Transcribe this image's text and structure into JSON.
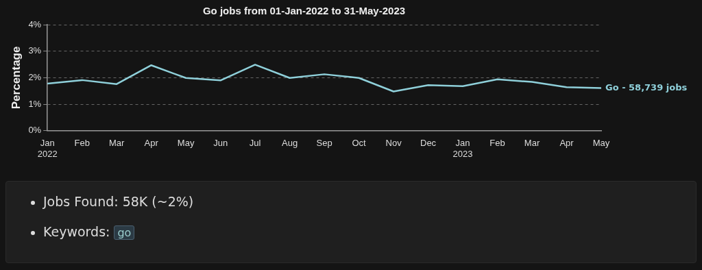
{
  "chart_data": {
    "type": "line",
    "title": "Go jobs from 01-Jan-2022 to 31-May-2023",
    "ylabel": "Percentage",
    "categories": [
      "Jan 2022",
      "Feb",
      "Mar",
      "Apr",
      "May",
      "Jun",
      "Jul",
      "Aug",
      "Sep",
      "Oct",
      "Nov",
      "Dec",
      "Jan 2023",
      "Feb",
      "Mar",
      "Apr",
      "May"
    ],
    "series": [
      {
        "name": "Go - 58,739 jobs",
        "color": "#8fd0da",
        "values": [
          1.78,
          1.91,
          1.76,
          2.47,
          1.99,
          1.9,
          2.49,
          1.99,
          2.13,
          1.99,
          1.48,
          1.72,
          1.68,
          1.94,
          1.84,
          1.64,
          1.61
        ]
      }
    ],
    "ylim": [
      0,
      4
    ],
    "yticks": [
      {
        "value": 0,
        "label": "0%"
      },
      {
        "value": 1,
        "label": "1%"
      },
      {
        "value": 2,
        "label": "2%"
      },
      {
        "value": 3,
        "label": "3%"
      },
      {
        "value": 4,
        "label": "4%"
      }
    ],
    "grid": "y",
    "legend": false,
    "marker": "none",
    "line_style": "solid",
    "annotations": [
      "Jobs Found: 58K (~2%)",
      "Keywords:",
      "go"
    ]
  }
}
